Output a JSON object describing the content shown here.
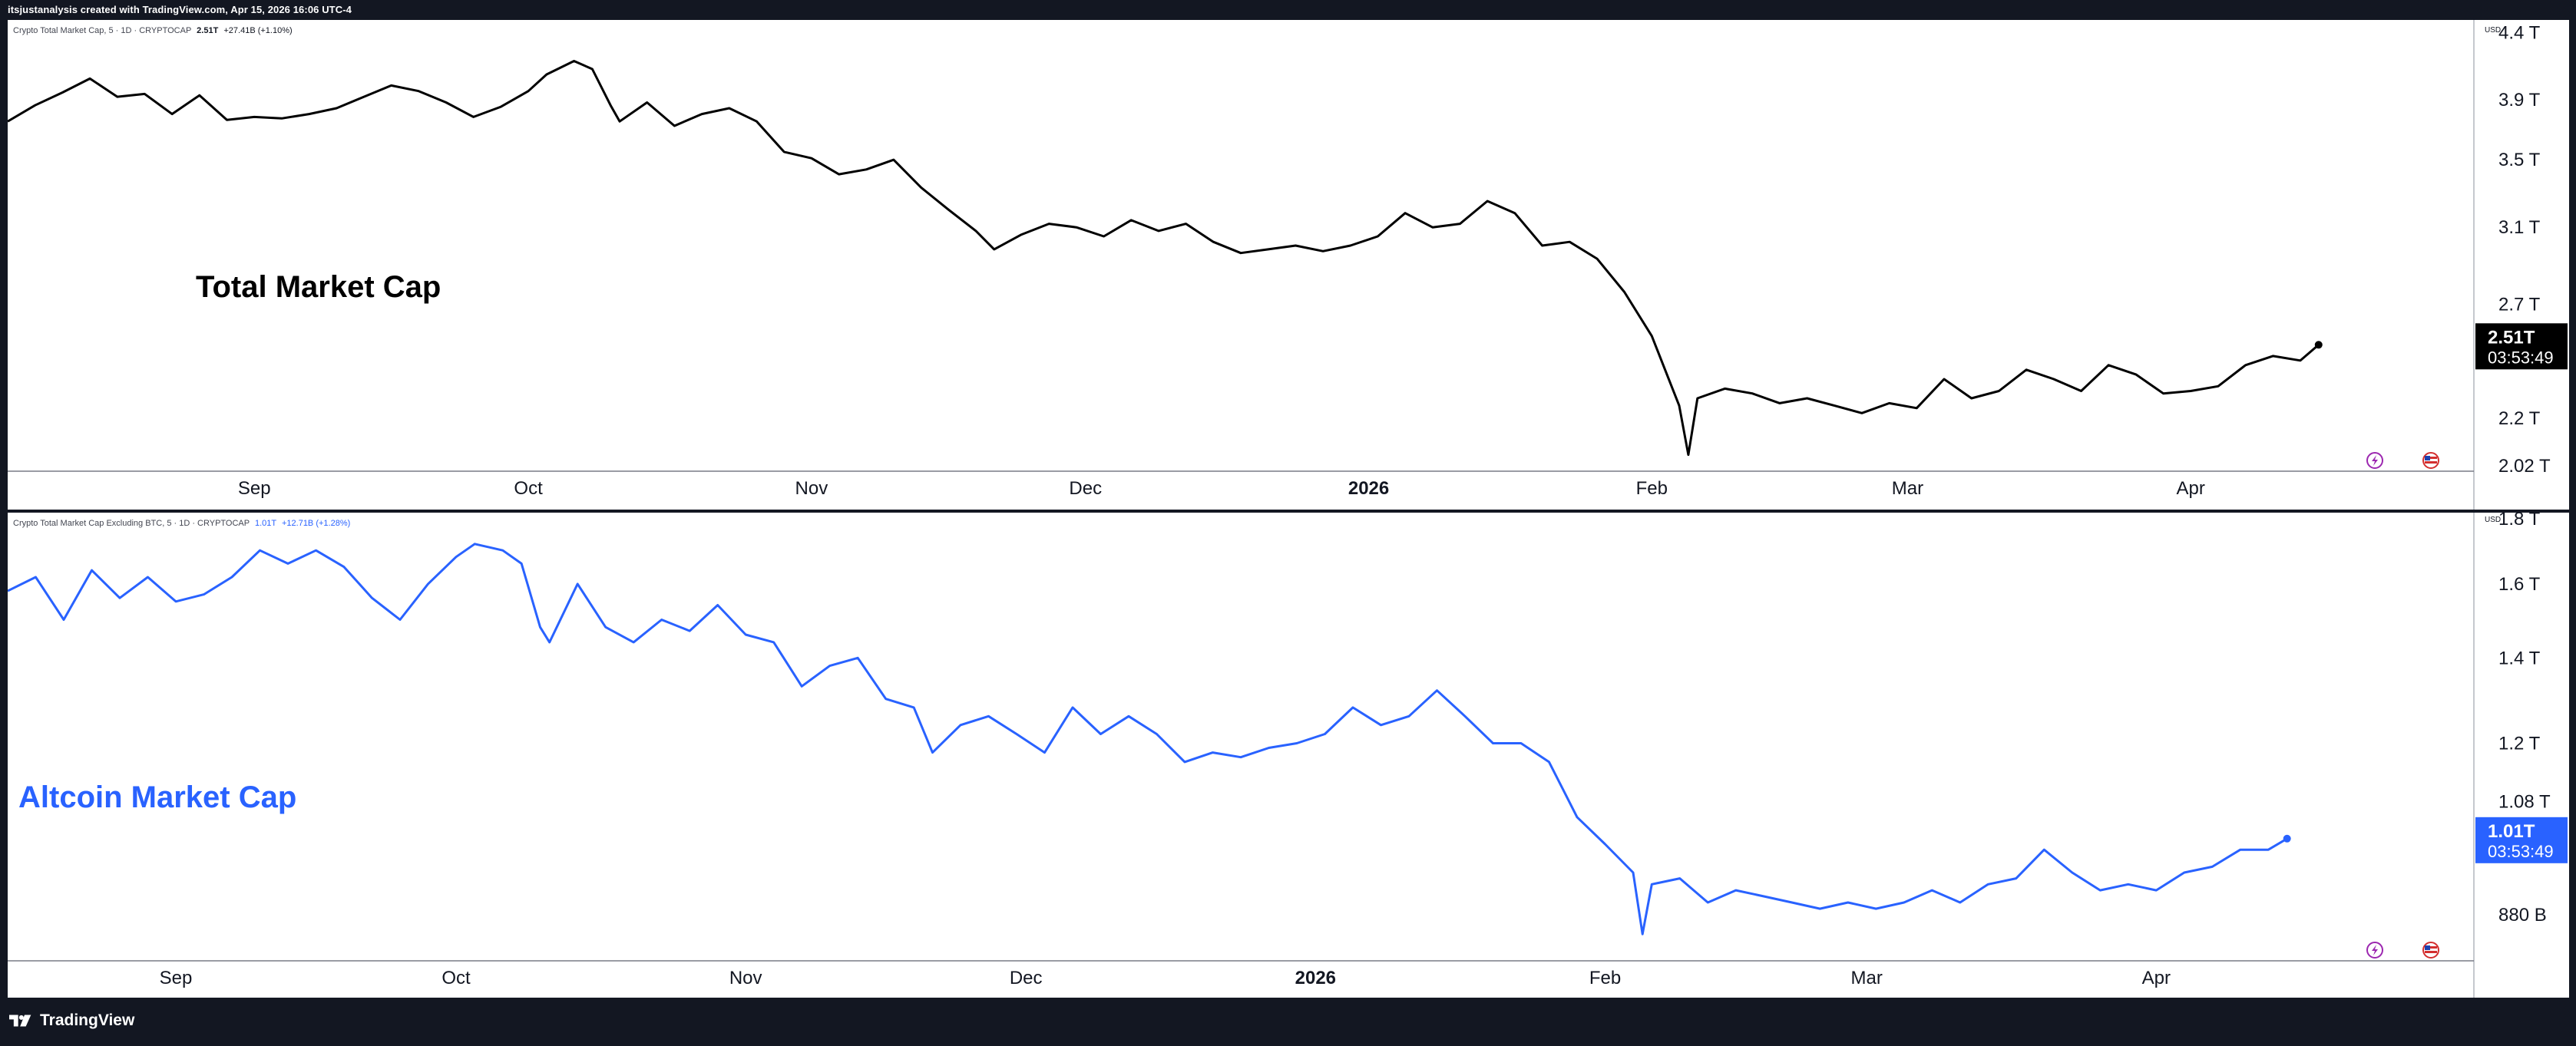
{
  "header": {
    "attribution": "itsjustanalysis created with TradingView.com, Apr 15, 2026 16:06 UTC-4"
  },
  "footer": {
    "brand": "TradingView"
  },
  "colors": {
    "frame": "#131722",
    "total_series": "#000000",
    "altcoin_series": "#2962ff",
    "grid_line": "#787b86"
  },
  "icons": [
    "tradingview-logo-icon",
    "lightning-icon",
    "us-flag-icon"
  ],
  "chart_data": [
    {
      "type": "line",
      "title": "Total Market Cap",
      "symbol_legend": "Crypto Total Market Cap, 5 · 1D · CRYPTOCAP",
      "last_value_label": "2.51T",
      "change_label": "+27.41B (+1.10%)",
      "currency": "USD",
      "countdown": "03:53:49",
      "y_tick_labels": [
        "4.4 T",
        "3.9 T",
        "3.5 T",
        "3.1 T",
        "2.7 T",
        "2.2 T",
        "2.02 T"
      ],
      "y_ticks": [
        4.4,
        3.9,
        3.5,
        3.1,
        2.7,
        2.2,
        2.02
      ],
      "x_tick_labels": [
        "Sep",
        "Oct",
        "Nov",
        "Dec",
        "2026",
        "Feb",
        "Mar",
        "Apr"
      ],
      "x_ticks": [
        "2025-09-01",
        "2025-10-01",
        "2025-11-01",
        "2025-12-01",
        "2026-01-01",
        "2026-02-01",
        "2026-03-01",
        "2026-04-01"
      ],
      "yscale": "log",
      "ylim": [
        2.0,
        4.5
      ],
      "xlim": [
        "2025-08-05",
        "2026-05-02"
      ],
      "grid": false,
      "last_value": 2.51,
      "series": [
        {
          "x": [
            "2025-08-05",
            "2025-08-08",
            "2025-08-11",
            "2025-08-14",
            "2025-08-17",
            "2025-08-20",
            "2025-08-23",
            "2025-08-26",
            "2025-08-29",
            "2025-09-01",
            "2025-09-04",
            "2025-09-07",
            "2025-09-10",
            "2025-09-13",
            "2025-09-16",
            "2025-09-19",
            "2025-09-22",
            "2025-09-25",
            "2025-09-28",
            "2025-10-01",
            "2025-10-03",
            "2025-10-06",
            "2025-10-08",
            "2025-10-10",
            "2025-10-11",
            "2025-10-14",
            "2025-10-17",
            "2025-10-20",
            "2025-10-23",
            "2025-10-26",
            "2025-10-29",
            "2025-11-01",
            "2025-11-04",
            "2025-11-07",
            "2025-11-10",
            "2025-11-13",
            "2025-11-16",
            "2025-11-19",
            "2025-11-21",
            "2025-11-24",
            "2025-11-27",
            "2025-11-30",
            "2025-12-03",
            "2025-12-06",
            "2025-12-09",
            "2025-12-12",
            "2025-12-15",
            "2025-12-18",
            "2025-12-21",
            "2025-12-24",
            "2025-12-27",
            "2025-12-30",
            "2026-01-02",
            "2026-01-05",
            "2026-01-08",
            "2026-01-11",
            "2026-01-14",
            "2026-01-17",
            "2026-01-20",
            "2026-01-23",
            "2026-01-26",
            "2026-01-29",
            "2026-02-01",
            "2026-02-04",
            "2026-02-05",
            "2026-02-06",
            "2026-02-09",
            "2026-02-12",
            "2026-02-15",
            "2026-02-18",
            "2026-02-21",
            "2026-02-24",
            "2026-02-27",
            "2026-03-02",
            "2026-03-05",
            "2026-03-08",
            "2026-03-11",
            "2026-03-14",
            "2026-03-17",
            "2026-03-20",
            "2026-03-23",
            "2026-03-26",
            "2026-03-29",
            "2026-04-01",
            "2026-04-04",
            "2026-04-07",
            "2026-04-10",
            "2026-04-13",
            "2026-04-15"
          ],
          "values": [
            3.75,
            3.86,
            3.95,
            4.05,
            3.92,
            3.94,
            3.8,
            3.93,
            3.76,
            3.78,
            3.77,
            3.8,
            3.84,
            3.92,
            4.0,
            3.96,
            3.88,
            3.78,
            3.85,
            3.96,
            4.08,
            4.18,
            4.12,
            3.86,
            3.75,
            3.88,
            3.72,
            3.8,
            3.84,
            3.75,
            3.55,
            3.51,
            3.41,
            3.44,
            3.5,
            3.33,
            3.2,
            3.08,
            2.98,
            3.06,
            3.12,
            3.1,
            3.05,
            3.14,
            3.08,
            3.12,
            3.02,
            2.96,
            2.98,
            3.0,
            2.97,
            3.0,
            3.05,
            3.18,
            3.1,
            3.12,
            3.25,
            3.18,
            3.0,
            3.02,
            2.93,
            2.76,
            2.55,
            2.25,
            2.06,
            2.28,
            2.32,
            2.3,
            2.26,
            2.28,
            2.25,
            2.22,
            2.26,
            2.24,
            2.36,
            2.28,
            2.31,
            2.4,
            2.36,
            2.31,
            2.42,
            2.38,
            2.3,
            2.31,
            2.33,
            2.42,
            2.46,
            2.44,
            2.51
          ]
        }
      ]
    },
    {
      "type": "line",
      "title": "Altcoin Market Cap",
      "symbol_legend": "Crypto Total Market Cap Excluding BTC, 5 · 1D · CRYPTOCAP",
      "last_value_label": "1.01T",
      "change_label": "+12.71B (+1.28%)",
      "currency": "USD",
      "countdown": "03:53:49",
      "y_tick_labels": [
        "1.8 T",
        "1.6 T",
        "1.4 T",
        "1.2 T",
        "1.08 T",
        "880 B"
      ],
      "y_ticks": [
        1.8,
        1.6,
        1.4,
        1.2,
        1.08,
        0.88
      ],
      "x_tick_labels": [
        "Sep",
        "Oct",
        "Nov",
        "Dec",
        "2026",
        "Feb",
        "Mar",
        "Apr"
      ],
      "x_ticks": [
        "2025-09-01",
        "2025-10-01",
        "2025-11-01",
        "2025-12-01",
        "2026-01-01",
        "2026-02-01",
        "2026-03-01",
        "2026-04-01"
      ],
      "yscale": "log",
      "ylim": [
        0.81,
        1.82
      ],
      "xlim": [
        "2025-08-14",
        "2026-05-05"
      ],
      "grid": false,
      "last_value": 1.01,
      "series": [
        {
          "x": [
            "2025-08-14",
            "2025-08-17",
            "2025-08-20",
            "2025-08-23",
            "2025-08-26",
            "2025-08-29",
            "2025-09-01",
            "2025-09-04",
            "2025-09-07",
            "2025-09-10",
            "2025-09-13",
            "2025-09-16",
            "2025-09-19",
            "2025-09-22",
            "2025-09-25",
            "2025-09-28",
            "2025-10-01",
            "2025-10-03",
            "2025-10-06",
            "2025-10-08",
            "2025-10-10",
            "2025-10-11",
            "2025-10-14",
            "2025-10-17",
            "2025-10-20",
            "2025-10-23",
            "2025-10-26",
            "2025-10-29",
            "2025-11-01",
            "2025-11-04",
            "2025-11-07",
            "2025-11-10",
            "2025-11-13",
            "2025-11-16",
            "2025-11-19",
            "2025-11-21",
            "2025-11-24",
            "2025-11-27",
            "2025-11-30",
            "2025-12-03",
            "2025-12-06",
            "2025-12-09",
            "2025-12-12",
            "2025-12-15",
            "2025-12-18",
            "2025-12-21",
            "2025-12-24",
            "2025-12-27",
            "2025-12-30",
            "2026-01-02",
            "2026-01-05",
            "2026-01-08",
            "2026-01-11",
            "2026-01-14",
            "2026-01-17",
            "2026-01-20",
            "2026-01-23",
            "2026-01-26",
            "2026-01-29",
            "2026-02-01",
            "2026-02-04",
            "2026-02-05",
            "2026-02-06",
            "2026-02-09",
            "2026-02-12",
            "2026-02-15",
            "2026-02-18",
            "2026-02-21",
            "2026-02-24",
            "2026-02-27",
            "2026-03-02",
            "2026-03-05",
            "2026-03-08",
            "2026-03-11",
            "2026-03-14",
            "2026-03-17",
            "2026-03-20",
            "2026-03-23",
            "2026-03-26",
            "2026-03-29",
            "2026-04-01",
            "2026-04-04",
            "2026-04-07",
            "2026-04-10",
            "2026-04-13",
            "2026-04-15"
          ],
          "values": [
            1.58,
            1.62,
            1.5,
            1.64,
            1.56,
            1.62,
            1.55,
            1.57,
            1.62,
            1.7,
            1.66,
            1.7,
            1.65,
            1.56,
            1.5,
            1.6,
            1.68,
            1.72,
            1.7,
            1.66,
            1.48,
            1.44,
            1.6,
            1.48,
            1.44,
            1.5,
            1.47,
            1.54,
            1.46,
            1.44,
            1.33,
            1.38,
            1.4,
            1.3,
            1.28,
            1.18,
            1.24,
            1.26,
            1.22,
            1.18,
            1.28,
            1.22,
            1.26,
            1.22,
            1.16,
            1.18,
            1.17,
            1.19,
            1.2,
            1.22,
            1.28,
            1.24,
            1.26,
            1.32,
            1.26,
            1.2,
            1.2,
            1.16,
            1.05,
            1.0,
            0.95,
            0.85,
            0.93,
            0.94,
            0.9,
            0.92,
            0.91,
            0.9,
            0.89,
            0.9,
            0.89,
            0.9,
            0.92,
            0.9,
            0.93,
            0.94,
            0.99,
            0.95,
            0.92,
            0.93,
            0.92,
            0.95,
            0.96,
            0.99,
            0.99,
            1.01
          ]
        }
      ]
    }
  ]
}
